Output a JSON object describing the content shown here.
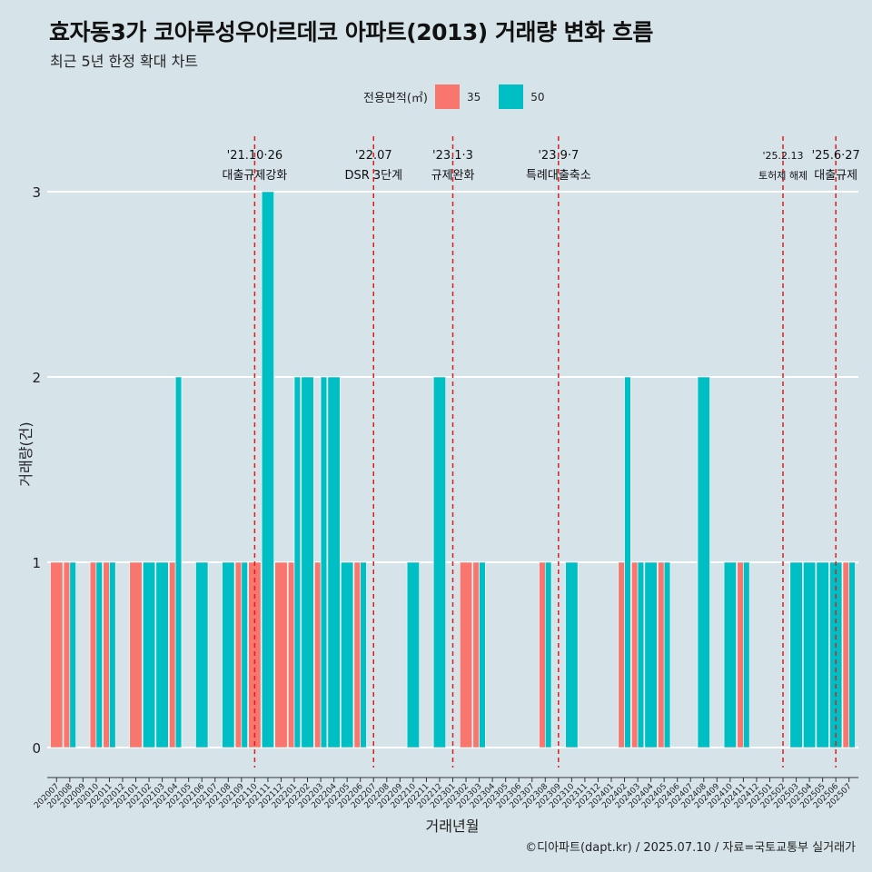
{
  "title": "효자동3가 코아루성우아르데코 아파트(2013) 거래량 변화 흐름",
  "subtitle": "최근 5년 한정 확대 차트",
  "caption": "©디아파트(dapt.kr) / 2025.07.10 / 자료=국토교통부 실거래가",
  "legend": {
    "title": "전용면적(㎡)",
    "items": [
      {
        "label": "35",
        "color": "#f8766d"
      },
      {
        "label": "50",
        "color": "#00bfc4"
      }
    ]
  },
  "chart_data": {
    "type": "bar",
    "xlabel": "거래년월",
    "ylabel": "거래량(건)",
    "ylim": [
      0,
      3
    ],
    "yticks": [
      0,
      1,
      2,
      3
    ],
    "grid": "horizontal",
    "legend_position": "top",
    "categories": [
      "202007",
      "202008",
      "202009",
      "202010",
      "202011",
      "202012",
      "202101",
      "202102",
      "202103",
      "202104",
      "202105",
      "202106",
      "202107",
      "202108",
      "202109",
      "202110",
      "202111",
      "202112",
      "202201",
      "202202",
      "202203",
      "202204",
      "202205",
      "202206",
      "202207",
      "202208",
      "202209",
      "202210",
      "202211",
      "202212",
      "202301",
      "202302",
      "202303",
      "202304",
      "202305",
      "202306",
      "202307",
      "202308",
      "202309",
      "202310",
      "202311",
      "202312",
      "202401",
      "202402",
      "202403",
      "202404",
      "202405",
      "202406",
      "202407",
      "202408",
      "202409",
      "202410",
      "202411",
      "202412",
      "202501",
      "202502",
      "202503",
      "202504",
      "202505",
      "202506",
      "202507"
    ],
    "transactions": [
      {
        "month": "202007",
        "area": "35",
        "count": 1
      },
      {
        "month": "202008",
        "area": "35",
        "count": 1
      },
      {
        "month": "202008",
        "area": "50",
        "count": 1
      },
      {
        "month": "202010",
        "area": "35",
        "count": 1
      },
      {
        "month": "202010",
        "area": "50",
        "count": 1
      },
      {
        "month": "202011",
        "area": "35",
        "count": 1
      },
      {
        "month": "202011",
        "area": "50",
        "count": 1
      },
      {
        "month": "202101",
        "area": "35",
        "count": 1
      },
      {
        "month": "202102",
        "area": "50",
        "count": 1
      },
      {
        "month": "202103",
        "area": "50",
        "count": 1
      },
      {
        "month": "202104",
        "area": "35",
        "count": 1
      },
      {
        "month": "202104",
        "area": "50",
        "count": 2
      },
      {
        "month": "202106",
        "area": "50",
        "count": 1
      },
      {
        "month": "202108",
        "area": "50",
        "count": 1
      },
      {
        "month": "202109",
        "area": "35",
        "count": 1
      },
      {
        "month": "202109",
        "area": "50",
        "count": 1
      },
      {
        "month": "202110",
        "area": "35",
        "count": 1
      },
      {
        "month": "202111",
        "area": "50",
        "count": 3
      },
      {
        "month": "202112",
        "area": "35",
        "count": 1
      },
      {
        "month": "202201",
        "area": "35",
        "count": 1
      },
      {
        "month": "202201",
        "area": "50",
        "count": 2
      },
      {
        "month": "202202",
        "area": "50",
        "count": 2
      },
      {
        "month": "202203",
        "area": "35",
        "count": 1
      },
      {
        "month": "202203",
        "area": "50",
        "count": 2
      },
      {
        "month": "202204",
        "area": "50",
        "count": 2
      },
      {
        "month": "202205",
        "area": "50",
        "count": 1
      },
      {
        "month": "202206",
        "area": "35",
        "count": 1
      },
      {
        "month": "202206",
        "area": "50",
        "count": 1
      },
      {
        "month": "202210",
        "area": "50",
        "count": 1
      },
      {
        "month": "202212",
        "area": "50",
        "count": 2
      },
      {
        "month": "202302",
        "area": "35",
        "count": 1
      },
      {
        "month": "202303",
        "area": "35",
        "count": 1
      },
      {
        "month": "202303",
        "area": "50",
        "count": 1
      },
      {
        "month": "202308",
        "area": "35",
        "count": 1
      },
      {
        "month": "202308",
        "area": "50",
        "count": 1
      },
      {
        "month": "202310",
        "area": "50",
        "count": 1
      },
      {
        "month": "202402",
        "area": "35",
        "count": 1
      },
      {
        "month": "202402",
        "area": "50",
        "count": 2
      },
      {
        "month": "202403",
        "area": "35",
        "count": 1
      },
      {
        "month": "202403",
        "area": "50",
        "count": 1
      },
      {
        "month": "202404",
        "area": "50",
        "count": 1
      },
      {
        "month": "202405",
        "area": "35",
        "count": 1
      },
      {
        "month": "202405",
        "area": "50",
        "count": 1
      },
      {
        "month": "202408",
        "area": "50",
        "count": 2
      },
      {
        "month": "202410",
        "area": "50",
        "count": 1
      },
      {
        "month": "202411",
        "area": "35",
        "count": 1
      },
      {
        "month": "202411",
        "area": "50",
        "count": 1
      },
      {
        "month": "202503",
        "area": "50",
        "count": 1
      },
      {
        "month": "202504",
        "area": "50",
        "count": 1
      },
      {
        "month": "202505",
        "area": "50",
        "count": 1
      },
      {
        "month": "202506",
        "area": "50",
        "count": 1
      },
      {
        "month": "202507",
        "area": "35",
        "count": 1
      },
      {
        "month": "202507",
        "area": "50",
        "count": 1
      }
    ],
    "annotations": [
      {
        "month": "202110",
        "date": "'21.10·26",
        "label": "대출규제강화"
      },
      {
        "month": "202207",
        "date": "'22.07",
        "label": "DSR 3단계"
      },
      {
        "month": "202301",
        "date": "'23.1·3",
        "label": "규제완화"
      },
      {
        "month": "202309",
        "date": "'23.9·7",
        "label": "특례대출축소"
      },
      {
        "month": "202502",
        "date": "'25.2.13",
        "label": "토허제 해제"
      },
      {
        "month": "202506",
        "date": "'25.6·27",
        "label": "대출규제"
      }
    ]
  }
}
